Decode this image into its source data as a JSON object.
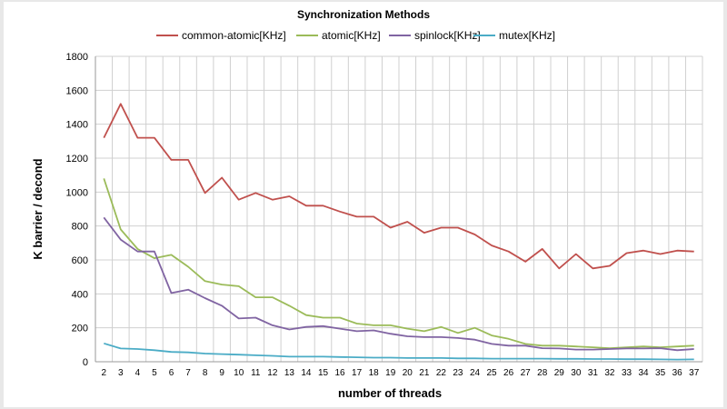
{
  "chart_data": {
    "type": "line",
    "title": "Synchronization Methods",
    "xlabel": "number of threads",
    "ylabel": "K barrier / decond",
    "ylim": [
      0,
      1800
    ],
    "yticks": [
      0,
      200,
      400,
      600,
      800,
      1000,
      1200,
      1400,
      1600,
      1800
    ],
    "grid": true,
    "legend": "top",
    "x": [
      2,
      3,
      4,
      5,
      6,
      7,
      8,
      9,
      10,
      11,
      12,
      13,
      14,
      15,
      16,
      17,
      18,
      19,
      20,
      21,
      22,
      23,
      24,
      25,
      26,
      27,
      28,
      29,
      30,
      31,
      32,
      33,
      34,
      35,
      36,
      37
    ],
    "series": [
      {
        "name": "common-atomic[KHz]",
        "color": "#c0504d",
        "values": [
          1320,
          1520,
          1320,
          1320,
          1190,
          1190,
          995,
          1085,
          955,
          995,
          955,
          975,
          920,
          920,
          885,
          855,
          855,
          790,
          825,
          760,
          790,
          790,
          750,
          685,
          650,
          590,
          665,
          550,
          635,
          550,
          565,
          640,
          655,
          635,
          655,
          650
        ]
      },
      {
        "name": "atomic[KHz]",
        "color": "#9bbb59",
        "values": [
          1080,
          780,
          665,
          610,
          630,
          560,
          475,
          455,
          445,
          380,
          380,
          330,
          275,
          260,
          260,
          225,
          215,
          215,
          195,
          180,
          205,
          170,
          200,
          155,
          135,
          105,
          95,
          95,
          90,
          85,
          80,
          85,
          90,
          85,
          90,
          95
        ]
      },
      {
        "name": "spinlock[KHz]",
        "color": "#8064a2",
        "values": [
          850,
          720,
          650,
          650,
          405,
          425,
          375,
          330,
          255,
          260,
          215,
          190,
          205,
          210,
          195,
          180,
          185,
          165,
          150,
          145,
          145,
          140,
          130,
          105,
          95,
          95,
          80,
          78,
          72,
          72,
          75,
          78,
          78,
          80,
          68,
          75
        ]
      },
      {
        "name": "mutex[KHz]",
        "color": "#4bacc6",
        "values": [
          108,
          78,
          75,
          68,
          58,
          55,
          48,
          45,
          42,
          38,
          35,
          30,
          30,
          30,
          28,
          26,
          24,
          24,
          22,
          22,
          22,
          20,
          20,
          18,
          18,
          18,
          18,
          17,
          17,
          16,
          16,
          15,
          15,
          14,
          13,
          14
        ]
      }
    ]
  }
}
